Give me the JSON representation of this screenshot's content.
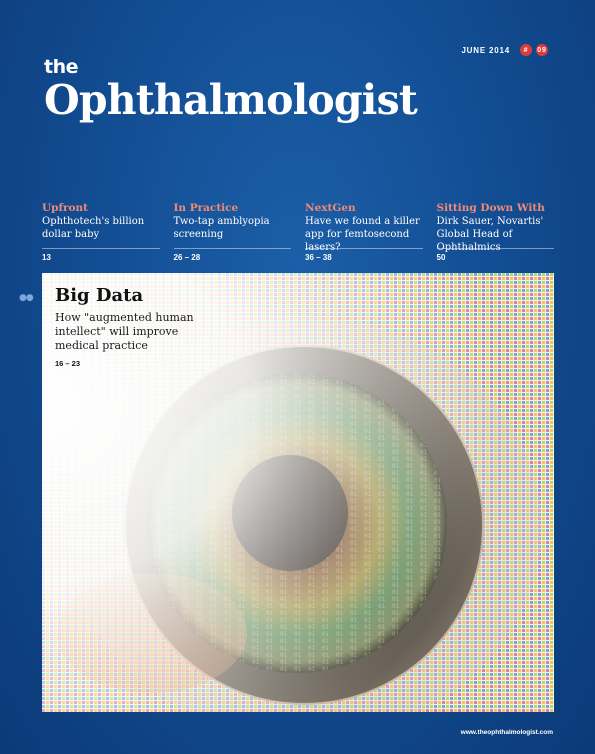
{
  "issue": {
    "date": "JUNE 2014",
    "hash": "#",
    "number": "09"
  },
  "masthead": {
    "the": "the",
    "name": "Ophthalmologist"
  },
  "teasers": [
    {
      "section": "Upfront",
      "desc": "Ophthotech's billion dollar baby",
      "pages": "13"
    },
    {
      "section": "In Practice",
      "desc": "Two-tap amblyopia screening",
      "pages": "26 – 28"
    },
    {
      "section": "NextGen",
      "desc": "Have we found a killer app for femtosecond lasers?",
      "pages": "36 – 38"
    },
    {
      "section": "Sitting Down With",
      "desc": "Dirk Sauer, Novartis' Global Head of Ophthalmics",
      "pages": "50"
    }
  ],
  "feature": {
    "headline": "Big Data",
    "subheading": "How \"augmented human intellect\" will improve medical practice",
    "pages": "16 – 23",
    "image_desc": "close-up-eye-with-binary-code-and-pixel-mosaic"
  },
  "footer": {
    "url": "www.theophthalmologist.com"
  },
  "colors": {
    "background": "#134e94",
    "accent": "#f28a73",
    "badge": "#e03b3b"
  }
}
